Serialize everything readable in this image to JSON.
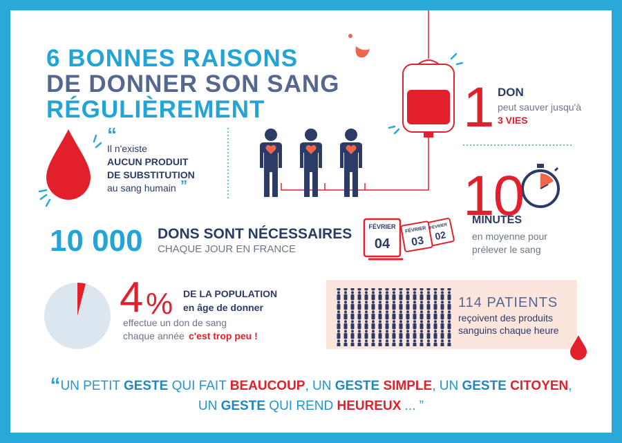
{
  "title": {
    "line1": "6 BONNES RAISONS",
    "line2": "DE DONNER SON SANG",
    "line3": "RÉGULIÈREMENT"
  },
  "substitute": {
    "open_quote": "“",
    "line1": "Il n'existe",
    "line2": "AUCUN PRODUIT",
    "line3": "DE SUBSTITUTION",
    "line4": "au sang humain",
    "close_quote": "”"
  },
  "don": {
    "number": "1",
    "label": "DON",
    "line1": "peut sauver jusqu'à",
    "line2": "3 VIES"
  },
  "minutes": {
    "number": "10",
    "label": "MINUTES",
    "line1": "en moyenne pour",
    "line2": "prélever le sang"
  },
  "daily": {
    "number": "10 000",
    "line1": "DONS SONT NÉCESSAIRES",
    "line2": "CHAQUE JOUR EN FRANCE"
  },
  "calendar": [
    {
      "month": "FÉVRIER",
      "day": "04"
    },
    {
      "month": "FÉVRIER",
      "day": "03"
    },
    {
      "month": "FÉVRIER",
      "day": "02"
    }
  ],
  "population": {
    "percent": 4,
    "unit": "%",
    "line1": "DE LA POPULATION",
    "line2": "en âge de donner",
    "line3": "effectue un don de sang",
    "line4": "chaque année",
    "emphasis": "c'est trop peu !"
  },
  "patients": {
    "line1": "114 PATIENTS",
    "line2": "reçoivent des produits",
    "line3": "sanguins chaque heure"
  },
  "quote": {
    "open": "“",
    "lines": [
      [
        {
          "text": "UN PETIT ",
          "style": "plain"
        },
        {
          "text": "GESTE",
          "style": "accent"
        },
        {
          "text": " QUI FAIT ",
          "style": "plain"
        },
        {
          "text": "BEAUCOUP",
          "style": "strong"
        },
        {
          "text": ", UN ",
          "style": "plain"
        },
        {
          "text": "GESTE ",
          "style": "accent"
        },
        {
          "text": "SIMPLE",
          "style": "strong"
        },
        {
          "text": ", UN ",
          "style": "plain"
        },
        {
          "text": "GESTE ",
          "style": "accent"
        },
        {
          "text": "CITOYEN",
          "style": "strong"
        },
        {
          "text": ",",
          "style": "plain"
        }
      ],
      [
        {
          "text": "UN ",
          "style": "plain"
        },
        {
          "text": "GESTE",
          "style": "accent"
        },
        {
          "text": " QUI REND ",
          "style": "plain"
        },
        {
          "text": "HEUREUX",
          "style": "strong"
        },
        {
          "text": " ... ”",
          "style": "plain"
        }
      ]
    ]
  }
}
